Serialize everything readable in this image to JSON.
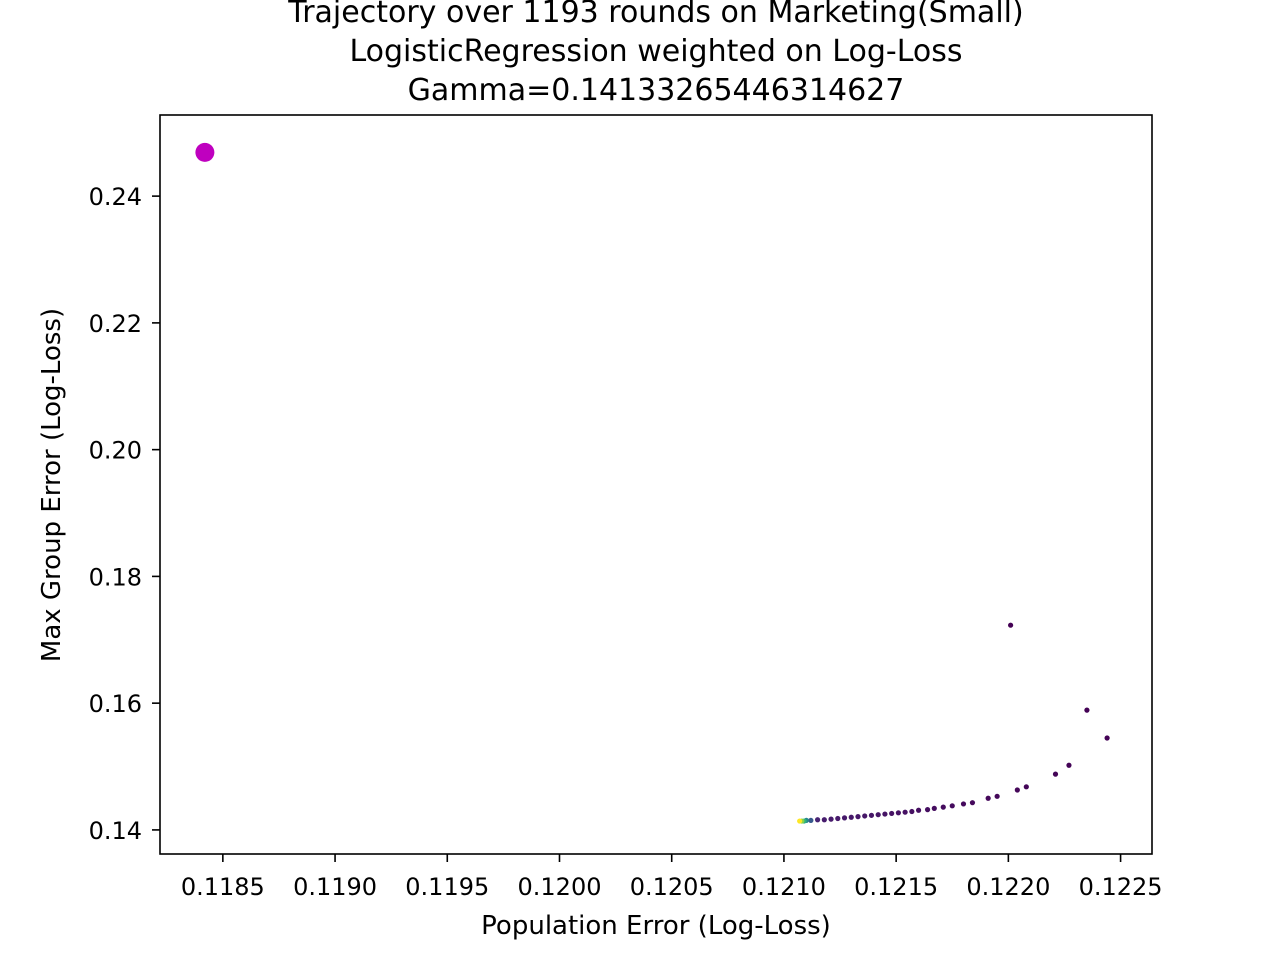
{
  "chart_data": {
    "type": "scatter",
    "title": [
      "Trajectory over 1193 rounds on Marketing(Small)",
      "LogisticRegression weighted on Log-Loss",
      "Gamma=0.14133265446314627"
    ],
    "xlabel": "Population Error (Log-Loss)",
    "ylabel": "Max Group Error (Log-Loss)",
    "xlim": [
      0.11822,
      0.12264
    ],
    "ylim": [
      0.1362,
      0.2528
    ],
    "grid": false,
    "xticks": [
      {
        "value": 0.1185,
        "label": "0.1185"
      },
      {
        "value": 0.119,
        "label": "0.1190"
      },
      {
        "value": 0.1195,
        "label": "0.1195"
      },
      {
        "value": 0.12,
        "label": "0.1200"
      },
      {
        "value": 0.1205,
        "label": "0.1205"
      },
      {
        "value": 0.121,
        "label": "0.1210"
      },
      {
        "value": 0.1215,
        "label": "0.1215"
      },
      {
        "value": 0.122,
        "label": "0.1220"
      },
      {
        "value": 0.1225,
        "label": "0.1225"
      }
    ],
    "yticks": [
      {
        "value": 0.14,
        "label": "0.14"
      },
      {
        "value": 0.16,
        "label": "0.16"
      },
      {
        "value": 0.18,
        "label": "0.18"
      },
      {
        "value": 0.2,
        "label": "0.20"
      },
      {
        "value": 0.22,
        "label": "0.22"
      },
      {
        "value": 0.24,
        "label": "0.24"
      }
    ],
    "highlight_point": {
      "x": 0.11842,
      "y": 0.2469,
      "color": "#bf00bf"
    },
    "colormap": "viridis",
    "trajectory": [
      {
        "x": 0.12201,
        "y": 0.1723
      },
      {
        "x": 0.12235,
        "y": 0.1589
      },
      {
        "x": 0.12244,
        "y": 0.1545
      },
      {
        "x": 0.12227,
        "y": 0.1502
      },
      {
        "x": 0.12221,
        "y": 0.1488
      },
      {
        "x": 0.12208,
        "y": 0.1468
      },
      {
        "x": 0.12204,
        "y": 0.1463
      },
      {
        "x": 0.12195,
        "y": 0.1453
      },
      {
        "x": 0.12191,
        "y": 0.145
      },
      {
        "x": 0.12184,
        "y": 0.1443
      },
      {
        "x": 0.1218,
        "y": 0.1441
      },
      {
        "x": 0.12175,
        "y": 0.1438
      },
      {
        "x": 0.12171,
        "y": 0.1436
      },
      {
        "x": 0.12167,
        "y": 0.1434
      },
      {
        "x": 0.12164,
        "y": 0.1432
      },
      {
        "x": 0.1216,
        "y": 0.1431
      },
      {
        "x": 0.12157,
        "y": 0.1429
      },
      {
        "x": 0.12154,
        "y": 0.1428
      },
      {
        "x": 0.12151,
        "y": 0.1427
      },
      {
        "x": 0.12148,
        "y": 0.1426
      },
      {
        "x": 0.12145,
        "y": 0.1425
      },
      {
        "x": 0.12142,
        "y": 0.1424
      },
      {
        "x": 0.12139,
        "y": 0.1423
      },
      {
        "x": 0.12136,
        "y": 0.1422
      },
      {
        "x": 0.12133,
        "y": 0.1421
      },
      {
        "x": 0.1213,
        "y": 0.142
      },
      {
        "x": 0.12127,
        "y": 0.1419
      },
      {
        "x": 0.12124,
        "y": 0.1418
      },
      {
        "x": 0.12121,
        "y": 0.1417
      },
      {
        "x": 0.12118,
        "y": 0.1416
      },
      {
        "x": 0.12115,
        "y": 0.1416
      },
      {
        "x": 0.12112,
        "y": 0.1415
      },
      {
        "x": 0.1211,
        "y": 0.1415
      },
      {
        "x": 0.12109,
        "y": 0.1414
      },
      {
        "x": 0.12108,
        "y": 0.1414
      },
      {
        "x": 0.12107,
        "y": 0.1414
      }
    ]
  }
}
